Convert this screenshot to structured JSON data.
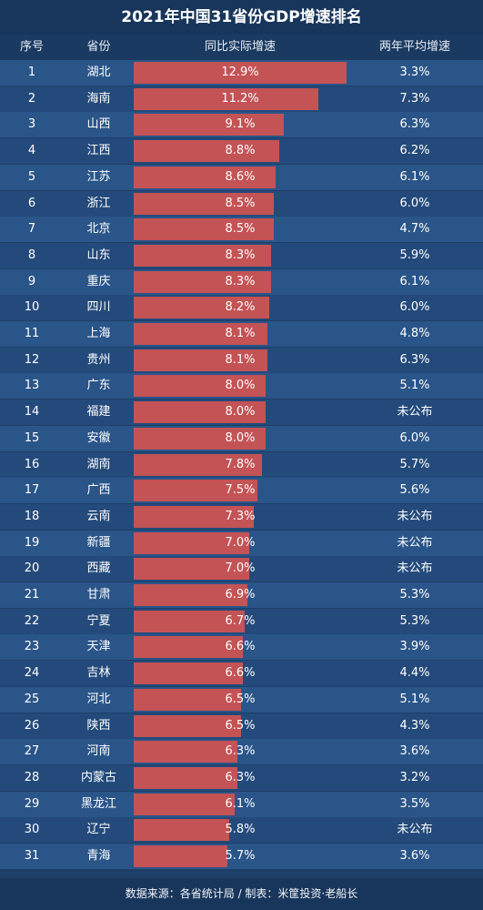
{
  "title": "2021年中国31省份GDP增速排名",
  "headers": {
    "rank": "序号",
    "province": "省份",
    "growth": "同比实际增速",
    "avg": "两年平均增速"
  },
  "footer": "数据来源：各省统计局 / 制表：米筐投资·老船长",
  "colors": {
    "bar": "#c35355",
    "row_a": "#2a5589",
    "row_b": "#234a7b",
    "header": "#1b3a61"
  },
  "chart_data": {
    "type": "table",
    "title": "2021年中国31省份GDP增速排名",
    "columns": [
      "序号",
      "省份",
      "同比实际增速",
      "两年平均增速"
    ],
    "rows": [
      {
        "rank": "1",
        "province": "湖北",
        "growth": 12.9,
        "growth_label": "12.9%",
        "avg": "3.3%"
      },
      {
        "rank": "2",
        "province": "海南",
        "growth": 11.2,
        "growth_label": "11.2%",
        "avg": "7.3%"
      },
      {
        "rank": "3",
        "province": "山西",
        "growth": 9.1,
        "growth_label": "9.1%",
        "avg": "6.3%"
      },
      {
        "rank": "4",
        "province": "江西",
        "growth": 8.8,
        "growth_label": "8.8%",
        "avg": "6.2%"
      },
      {
        "rank": "5",
        "province": "江苏",
        "growth": 8.6,
        "growth_label": "8.6%",
        "avg": "6.1%"
      },
      {
        "rank": "6",
        "province": "浙江",
        "growth": 8.5,
        "growth_label": "8.5%",
        "avg": "6.0%"
      },
      {
        "rank": "7",
        "province": "北京",
        "growth": 8.5,
        "growth_label": "8.5%",
        "avg": "4.7%"
      },
      {
        "rank": "8",
        "province": "山东",
        "growth": 8.3,
        "growth_label": "8.3%",
        "avg": "5.9%"
      },
      {
        "rank": "9",
        "province": "重庆",
        "growth": 8.3,
        "growth_label": "8.3%",
        "avg": "6.1%"
      },
      {
        "rank": "10",
        "province": "四川",
        "growth": 8.2,
        "growth_label": "8.2%",
        "avg": "6.0%"
      },
      {
        "rank": "11",
        "province": "上海",
        "growth": 8.1,
        "growth_label": "8.1%",
        "avg": "4.8%"
      },
      {
        "rank": "12",
        "province": "贵州",
        "growth": 8.1,
        "growth_label": "8.1%",
        "avg": "6.3%"
      },
      {
        "rank": "13",
        "province": "广东",
        "growth": 8.0,
        "growth_label": "8.0%",
        "avg": "5.1%"
      },
      {
        "rank": "14",
        "province": "福建",
        "growth": 8.0,
        "growth_label": "8.0%",
        "avg": "未公布"
      },
      {
        "rank": "15",
        "province": "安徽",
        "growth": 8.0,
        "growth_label": "8.0%",
        "avg": "6.0%"
      },
      {
        "rank": "16",
        "province": "湖南",
        "growth": 7.8,
        "growth_label": "7.8%",
        "avg": "5.7%"
      },
      {
        "rank": "17",
        "province": "广西",
        "growth": 7.5,
        "growth_label": "7.5%",
        "avg": "5.6%"
      },
      {
        "rank": "18",
        "province": "云南",
        "growth": 7.3,
        "growth_label": "7.3%",
        "avg": "未公布"
      },
      {
        "rank": "19",
        "province": "新疆",
        "growth": 7.0,
        "growth_label": "7.0%",
        "avg": "未公布"
      },
      {
        "rank": "20",
        "province": "西藏",
        "growth": 7.0,
        "growth_label": "7.0%",
        "avg": "未公布"
      },
      {
        "rank": "21",
        "province": "甘肃",
        "growth": 6.9,
        "growth_label": "6.9%",
        "avg": "5.3%"
      },
      {
        "rank": "22",
        "province": "宁夏",
        "growth": 6.7,
        "growth_label": "6.7%",
        "avg": "5.3%"
      },
      {
        "rank": "23",
        "province": "天津",
        "growth": 6.6,
        "growth_label": "6.6%",
        "avg": "3.9%"
      },
      {
        "rank": "24",
        "province": "吉林",
        "growth": 6.6,
        "growth_label": "6.6%",
        "avg": "4.4%"
      },
      {
        "rank": "25",
        "province": "河北",
        "growth": 6.5,
        "growth_label": "6.5%",
        "avg": "5.1%"
      },
      {
        "rank": "26",
        "province": "陕西",
        "growth": 6.5,
        "growth_label": "6.5%",
        "avg": "4.3%"
      },
      {
        "rank": "27",
        "province": "河南",
        "growth": 6.3,
        "growth_label": "6.3%",
        "avg": "3.6%"
      },
      {
        "rank": "28",
        "province": "内蒙古",
        "growth": 6.3,
        "growth_label": "6.3%",
        "avg": "3.2%"
      },
      {
        "rank": "29",
        "province": "黑龙江",
        "growth": 6.1,
        "growth_label": "6.1%",
        "avg": "3.5%"
      },
      {
        "rank": "30",
        "province": "辽宁",
        "growth": 5.8,
        "growth_label": "5.8%",
        "avg": "未公布"
      },
      {
        "rank": "31",
        "province": "青海",
        "growth": 5.7,
        "growth_label": "5.7%",
        "avg": "3.6%"
      }
    ]
  }
}
